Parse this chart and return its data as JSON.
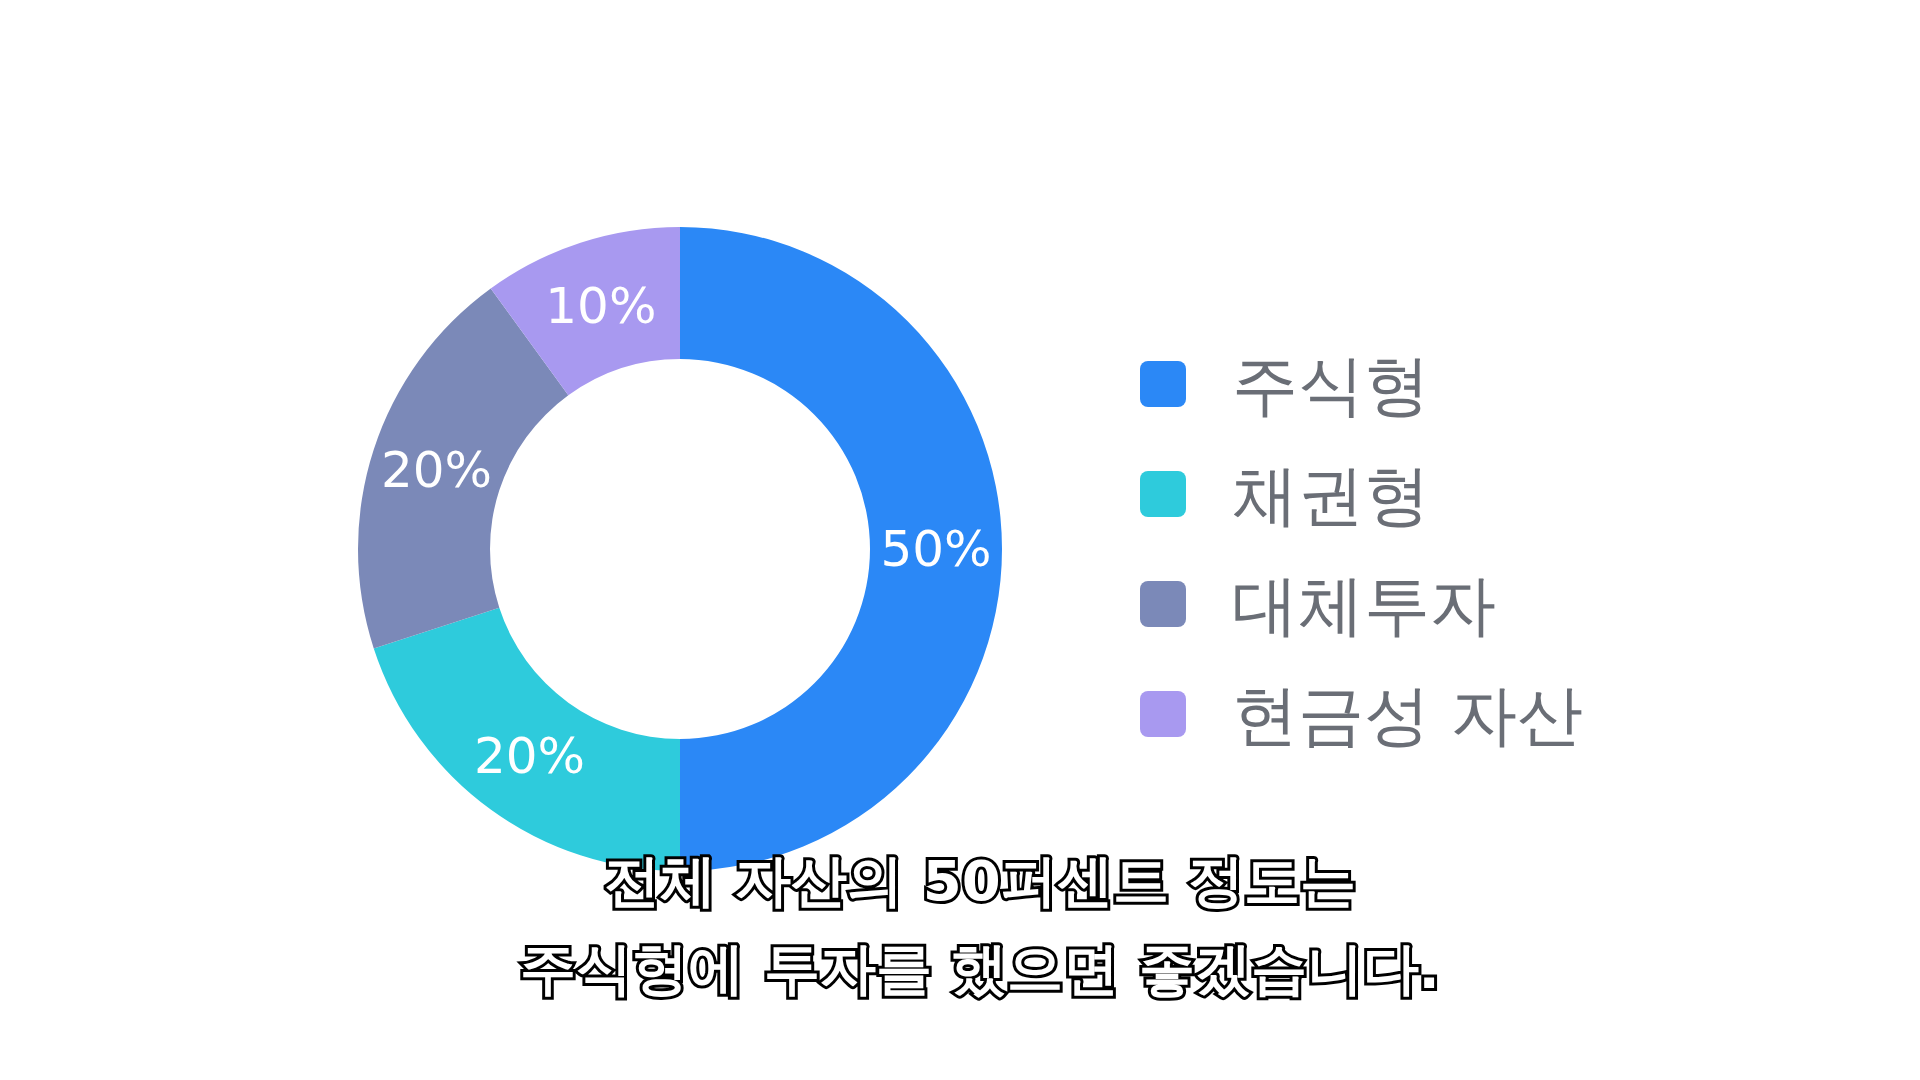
{
  "chart_data": {
    "type": "donut",
    "categories": [
      "주식형",
      "채권형",
      "대체투자",
      "현금성 자산"
    ],
    "values": [
      50,
      20,
      20,
      10
    ],
    "colors": [
      "#2b88f6",
      "#2ecbdc",
      "#7b89b8",
      "#a899f0"
    ],
    "value_labels": [
      "50%",
      "20%",
      "20%",
      "10%"
    ],
    "legend": "right",
    "annotations": [
      "전체 자산의 50퍼센트 정도는",
      "주식형에 투자를 했으면 좋겠습니다."
    ]
  }
}
